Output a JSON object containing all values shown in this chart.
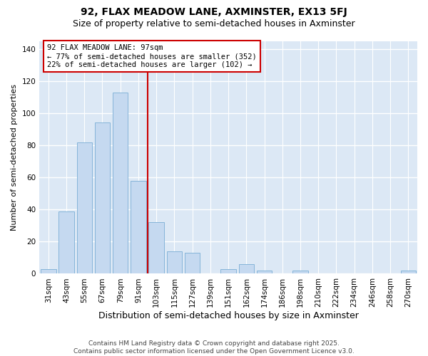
{
  "title1": "92, FLAX MEADOW LANE, AXMINSTER, EX13 5FJ",
  "title2": "Size of property relative to semi-detached houses in Axminster",
  "xlabel": "Distribution of semi-detached houses by size in Axminster",
  "ylabel": "Number of semi-detached properties",
  "bar_color": "#c5d9f0",
  "bar_edge_color": "#85b4d9",
  "plot_bg_color": "#dce8f5",
  "fig_bg_color": "#ffffff",
  "grid_color": "#ffffff",
  "categories": [
    "31sqm",
    "43sqm",
    "55sqm",
    "67sqm",
    "79sqm",
    "91sqm",
    "103sqm",
    "115sqm",
    "127sqm",
    "139sqm",
    "151sqm",
    "162sqm",
    "174sqm",
    "186sqm",
    "198sqm",
    "210sqm",
    "222sqm",
    "234sqm",
    "246sqm",
    "258sqm",
    "270sqm"
  ],
  "values": [
    3,
    39,
    82,
    94,
    113,
    58,
    32,
    14,
    13,
    0,
    3,
    6,
    2,
    0,
    2,
    0,
    0,
    0,
    0,
    0,
    2
  ],
  "property_line_x": 5.5,
  "property_line_color": "#cc0000",
  "annotation_title": "92 FLAX MEADOW LANE: 97sqm",
  "annotation_line1": "← 77% of semi-detached houses are smaller (352)",
  "annotation_line2": "22% of semi-detached houses are larger (102) →",
  "annotation_box_facecolor": "#ffffff",
  "annotation_box_edgecolor": "#cc0000",
  "ylim": [
    0,
    145
  ],
  "yticks": [
    0,
    20,
    40,
    60,
    80,
    100,
    120,
    140
  ],
  "footer": "Contains HM Land Registry data © Crown copyright and database right 2025.\nContains public sector information licensed under the Open Government Licence v3.0.",
  "title1_fontsize": 10,
  "title2_fontsize": 9,
  "xlabel_fontsize": 9,
  "ylabel_fontsize": 8,
  "tick_fontsize": 7.5,
  "annotation_fontsize": 7.5,
  "footer_fontsize": 6.5
}
